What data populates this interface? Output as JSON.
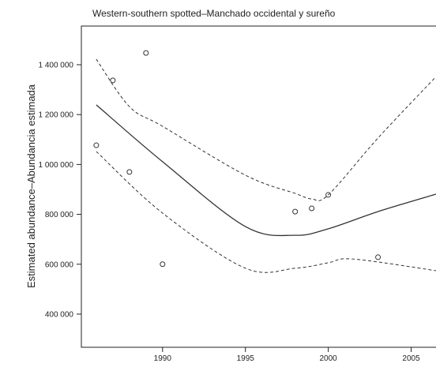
{
  "chart_data": {
    "type": "scatter",
    "title": "Western-southern spotted–Manchado occidental y sureño",
    "y_label": "Estimated abundance–Abundancia estimada",
    "xlim": [
      1985.1,
      2006.5
    ],
    "ylim": [
      267000,
      1555000
    ],
    "xticks": [
      1990,
      1995,
      2000,
      2005
    ],
    "yticks": [
      {
        "value": 400000,
        "label": "400 000"
      },
      {
        "value": 600000,
        "label": "600 000"
      },
      {
        "value": 800000,
        "label": "800 000"
      },
      {
        "value": 1000000,
        "label": "1 000 000"
      },
      {
        "value": 1200000,
        "label": "1 200 000"
      },
      {
        "value": 1400000,
        "label": "1 400 000"
      }
    ],
    "color": "#333333",
    "points": {
      "x": [
        1986,
        1987,
        1988,
        1989,
        1990,
        1998,
        1999,
        2000,
        2003
      ],
      "values": [
        1077000,
        1337000,
        970000,
        1447000,
        600000,
        811000,
        824000,
        878000,
        628000
      ]
    },
    "lines": [
      {
        "style": "solid",
        "x": [
          1986,
          1990,
          1995,
          1998,
          2000,
          2003,
          2006.5
        ],
        "values": [
          1239000,
          1011000,
          751000,
          716000,
          742000,
          811000,
          881000
        ]
      },
      {
        "style": "dashed",
        "x": [
          1986,
          1988,
          1990,
          1995,
          1998,
          1999,
          2000,
          2003,
          2006.5
        ],
        "values": [
          1422000,
          1232000,
          1153000,
          957000,
          884000,
          862000,
          878000,
          1106000,
          1352000
        ]
      },
      {
        "style": "dashed",
        "x": [
          1986,
          1990,
          1995,
          1998,
          2000,
          2001,
          2003,
          2006.5
        ],
        "values": [
          1052000,
          805000,
          584000,
          584000,
          606000,
          622000,
          609000,
          574000
        ]
      }
    ]
  }
}
